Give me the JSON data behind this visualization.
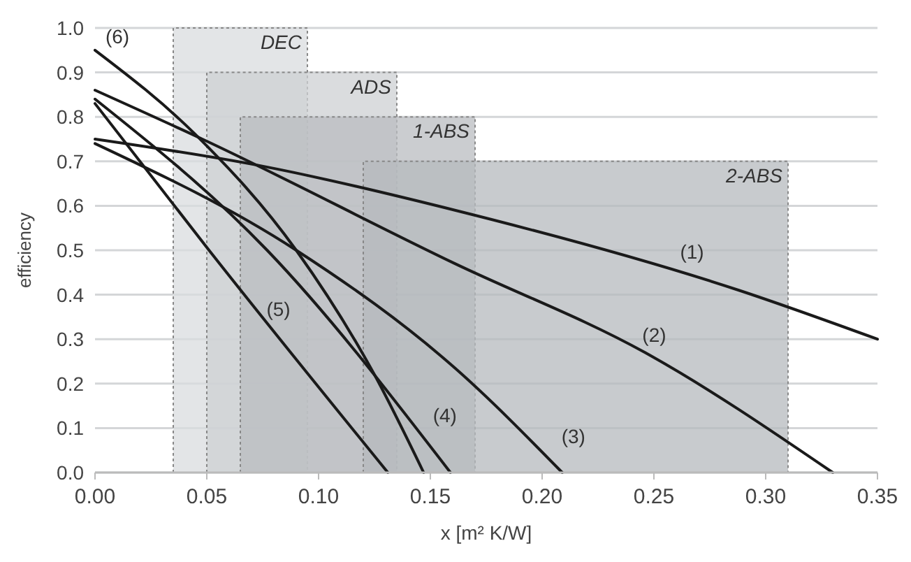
{
  "chart_data": {
    "type": "line",
    "xlabel": "x [m² K/W]",
    "ylabel": "efficiency",
    "xlim": [
      0,
      0.35
    ],
    "ylim": [
      0,
      1
    ],
    "xticks": [
      {
        "value": 0,
        "label": "0.00"
      },
      {
        "value": 0.05,
        "label": "0.05"
      },
      {
        "value": 0.1,
        "label": "0.10"
      },
      {
        "value": 0.15,
        "label": "0.15"
      },
      {
        "value": 0.2,
        "label": "0.20"
      },
      {
        "value": 0.25,
        "label": "0.25"
      },
      {
        "value": 0.3,
        "label": "0.30"
      },
      {
        "value": 0.35,
        "label": "0.35"
      }
    ],
    "yticks": [
      {
        "value": 0,
        "label": "0.0"
      },
      {
        "value": 0.1,
        "label": "0.1"
      },
      {
        "value": 0.2,
        "label": "0.2"
      },
      {
        "value": 0.3,
        "label": "0.3"
      },
      {
        "value": 0.4,
        "label": "0.4"
      },
      {
        "value": 0.5,
        "label": "0.5"
      },
      {
        "value": 0.6,
        "label": "0.6"
      },
      {
        "value": 0.7,
        "label": "0.7"
      },
      {
        "value": 0.8,
        "label": "0.8"
      },
      {
        "value": 0.9,
        "label": "0.9"
      },
      {
        "value": 1.0,
        "label": "1.0"
      }
    ],
    "grid": "y",
    "marker": "none",
    "line_style": "solid",
    "series": [
      {
        "type": "area",
        "name": "DEC",
        "color": "#dadcdf",
        "line_style": "dotted",
        "x": [
          0.035,
          0.095
        ],
        "values": [
          1.0,
          1.0
        ]
      },
      {
        "type": "area",
        "name": "ADS",
        "color": "#cdd0d3",
        "line_style": "dotted",
        "x": [
          0.05,
          0.135
        ],
        "values": [
          0.9,
          0.9
        ]
      },
      {
        "type": "area",
        "name": "1-ABS",
        "color": "#b9bcc0",
        "line_style": "dotted",
        "x": [
          0.065,
          0.17
        ],
        "values": [
          0.8,
          0.8
        ]
      },
      {
        "type": "area",
        "name": "2-ABS",
        "color": "#b5b9be",
        "line_style": "dotted",
        "x": [
          0.12,
          0.31
        ],
        "values": [
          0.7,
          0.7
        ]
      },
      {
        "name": "(1)",
        "color": "#1a1a1a",
        "x": [
          0,
          0.074,
          0.161,
          0.288,
          0.35
        ],
        "values": [
          0.75,
          0.69,
          0.59,
          0.41,
          0.3
        ]
      },
      {
        "name": "(2)",
        "color": "#1a1a1a",
        "x": [
          0,
          0.048,
          0.161,
          0.246,
          0.33
        ],
        "values": [
          0.86,
          0.75,
          0.47,
          0.27,
          0
        ]
      },
      {
        "name": "(3)",
        "color": "#1a1a1a",
        "x": [
          0,
          0.09,
          0.161,
          0.209
        ],
        "values": [
          0.74,
          0.5,
          0.235,
          0
        ]
      },
      {
        "name": "(4)",
        "color": "#1a1a1a",
        "x": [
          0,
          0.077,
          0.159
        ],
        "values": [
          0.84,
          0.5,
          0
        ]
      },
      {
        "name": "(5)",
        "color": "#1a1a1a",
        "x": [
          0,
          0.051,
          0.131
        ],
        "values": [
          0.83,
          0.5,
          0
        ]
      },
      {
        "name": "(6)",
        "color": "#1a1a1a",
        "x": [
          0,
          0.045,
          0.09,
          0.125,
          0.147
        ],
        "values": [
          0.95,
          0.76,
          0.5,
          0.22,
          0
        ]
      }
    ]
  }
}
